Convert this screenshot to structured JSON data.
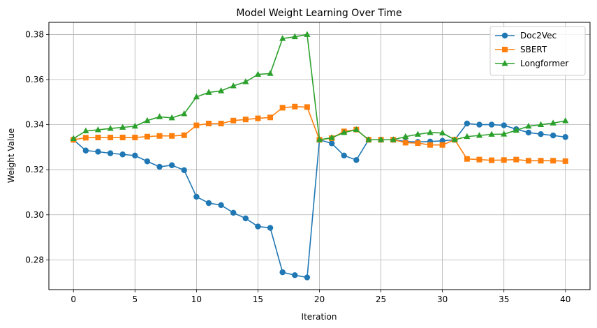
{
  "chart_data": {
    "type": "line",
    "title": "Model Weight Learning Over Time",
    "xlabel": "Iteration",
    "ylabel": "Weight Value",
    "xlim": [
      -2,
      42
    ],
    "ylim": [
      0.2668,
      0.3854
    ],
    "xticks": [
      0,
      5,
      10,
      15,
      20,
      25,
      30,
      35,
      40
    ],
    "yticks": [
      0.28,
      0.3,
      0.32,
      0.34,
      0.36,
      0.38
    ],
    "xtick_labels": [
      "0",
      "5",
      "10",
      "15",
      "20",
      "25",
      "30",
      "35",
      "40"
    ],
    "ytick_labels": [
      "0.28",
      "0.30",
      "0.32",
      "0.34",
      "0.36",
      "0.38"
    ],
    "grid": true,
    "legend_position": "top-right",
    "x": [
      0,
      1,
      2,
      3,
      4,
      5,
      6,
      7,
      8,
      9,
      10,
      11,
      12,
      13,
      14,
      15,
      16,
      17,
      18,
      19,
      20,
      21,
      22,
      23,
      24,
      25,
      26,
      27,
      28,
      29,
      30,
      31,
      32,
      33,
      34,
      35,
      36,
      37,
      38,
      39,
      40
    ],
    "series": [
      {
        "name": "Doc2Vec",
        "color": "#1f77b4",
        "marker": "circle",
        "values": [
          0.3333,
          0.3285,
          0.328,
          0.3273,
          0.3268,
          0.3263,
          0.3237,
          0.3213,
          0.322,
          0.3198,
          0.308,
          0.3052,
          0.3043,
          0.3009,
          0.2984,
          0.2948,
          0.2942,
          0.2745,
          0.2732,
          0.2722,
          0.3333,
          0.3317,
          0.3263,
          0.3243,
          0.3333,
          0.3333,
          0.3333,
          0.3325,
          0.3323,
          0.3325,
          0.3328,
          0.3333,
          0.3405,
          0.34,
          0.34,
          0.3397,
          0.338,
          0.3365,
          0.3358,
          0.3352,
          0.3345
        ]
      },
      {
        "name": "SBERT",
        "color": "#ff7f0e",
        "marker": "square",
        "values": [
          0.3333,
          0.3342,
          0.3343,
          0.3343,
          0.3343,
          0.3343,
          0.3347,
          0.335,
          0.335,
          0.3353,
          0.3397,
          0.3405,
          0.3405,
          0.3418,
          0.3423,
          0.3428,
          0.3432,
          0.3475,
          0.348,
          0.3478,
          0.3333,
          0.334,
          0.337,
          0.3378,
          0.3333,
          0.3333,
          0.3333,
          0.332,
          0.3318,
          0.331,
          0.331,
          0.3333,
          0.3248,
          0.3245,
          0.3242,
          0.3243,
          0.3245,
          0.324,
          0.324,
          0.324,
          0.3238
        ]
      },
      {
        "name": "Longformer",
        "color": "#2ca02c",
        "marker": "triangle",
        "values": [
          0.3338,
          0.3372,
          0.3377,
          0.3383,
          0.3388,
          0.3393,
          0.3418,
          0.3435,
          0.343,
          0.3448,
          0.3523,
          0.3543,
          0.355,
          0.3572,
          0.359,
          0.3623,
          0.3627,
          0.3782,
          0.379,
          0.38,
          0.3333,
          0.3342,
          0.3365,
          0.3378,
          0.3333,
          0.3333,
          0.3333,
          0.3347,
          0.3357,
          0.3365,
          0.3363,
          0.3333,
          0.3347,
          0.3352,
          0.3357,
          0.3358,
          0.3375,
          0.3393,
          0.34,
          0.3407,
          0.3417
        ]
      }
    ]
  }
}
